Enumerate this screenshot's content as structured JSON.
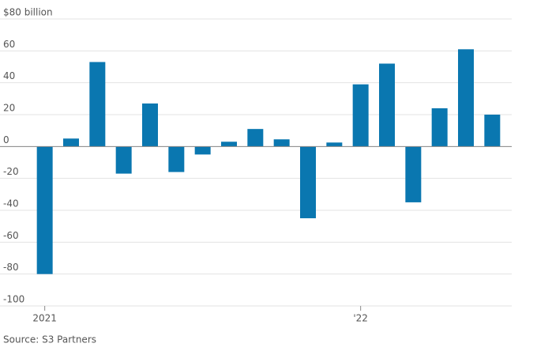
{
  "chart_data": {
    "type": "bar",
    "categories": [
      "2021",
      null,
      null,
      null,
      null,
      null,
      null,
      null,
      null,
      null,
      null,
      null,
      "'22",
      null,
      null,
      null,
      null,
      null
    ],
    "values": [
      -80,
      5,
      53,
      -17,
      27,
      -16,
      -5,
      3,
      11,
      4.5,
      -45,
      2.5,
      39,
      52,
      -35,
      24,
      61,
      20
    ],
    "color": "#0a77b0",
    "ylim": [
      -100,
      80
    ],
    "yticks": [
      -100,
      -80,
      -60,
      -40,
      -20,
      0,
      20,
      40,
      60,
      {
        "value": 80,
        "label": "$80 billion"
      }
    ],
    "grid": true,
    "source": "Source: S3 Partners"
  }
}
